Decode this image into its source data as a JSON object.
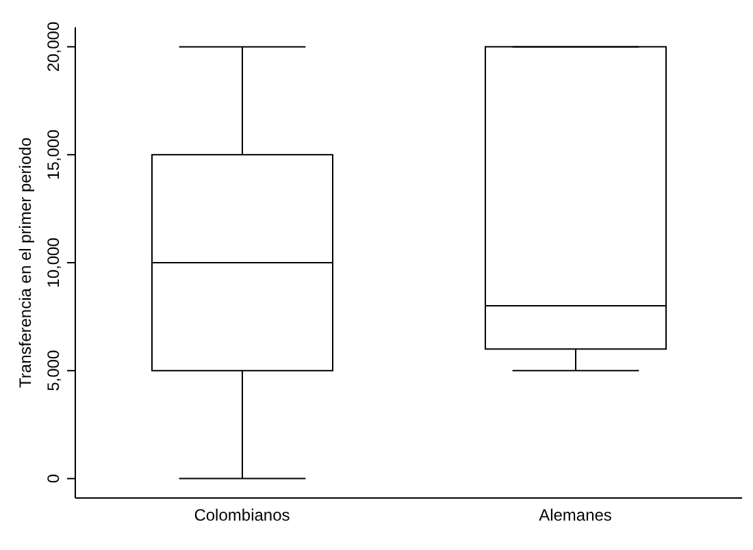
{
  "chart_data": {
    "type": "box",
    "ylabel": "Transferencia en el primer periodo",
    "categories": [
      "Colombianos",
      "Alemanes"
    ],
    "boxes": [
      {
        "low": 0,
        "q1": 5000,
        "median": 10000,
        "q3": 15000,
        "high": 20000
      },
      {
        "low": 5000,
        "q1": 6000,
        "median": 8000,
        "q3": 20000,
        "high": 20000
      }
    ],
    "color": "#000000",
    "ylim": [
      -900,
      20900
    ],
    "yticks": [
      {
        "value": 0,
        "label": "0"
      },
      {
        "value": 5000,
        "label": "5,000"
      },
      {
        "value": 10000,
        "label": "10,000"
      },
      {
        "value": 15000,
        "label": "15,000"
      },
      {
        "value": 20000,
        "label": "20,000"
      }
    ],
    "grid": false,
    "legend": false
  }
}
